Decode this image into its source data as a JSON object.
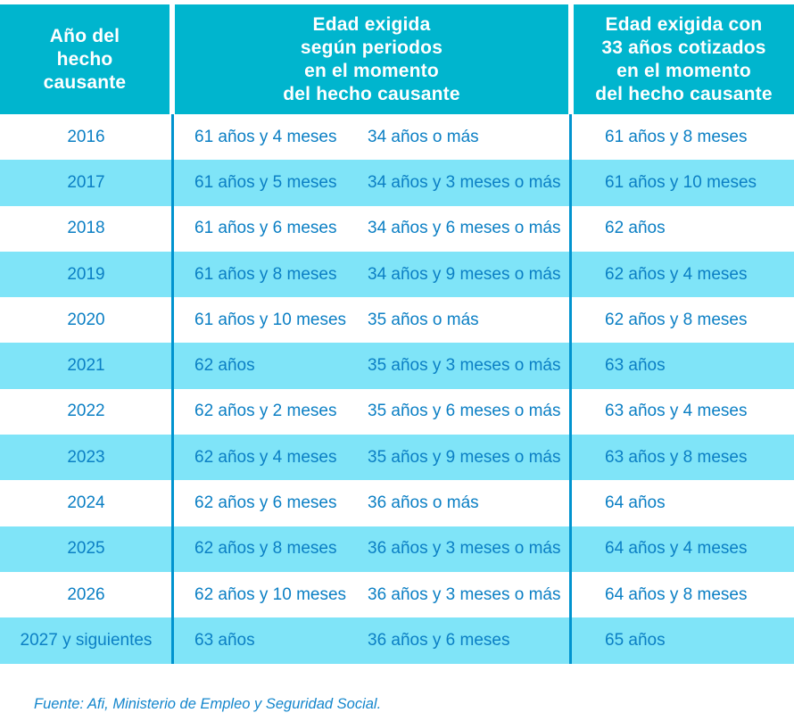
{
  "header": {
    "col1": "Año del\nhecho\ncausante",
    "col2": "Edad exigida\nsegún periodos\nen el momento\ndel hecho causante",
    "col3": "Edad exigida con\n33 años cotizados\nen el momento\ndel hecho causante"
  },
  "rows": [
    {
      "year": "2016",
      "required_age": "61 años y 4 meses",
      "contribution_period": "34 años o más",
      "age_with_33": "61 años y 8 meses"
    },
    {
      "year": "2017",
      "required_age": "61 años y 5 meses",
      "contribution_period": "34 años y 3 meses o más",
      "age_with_33": "61 años y 10 meses"
    },
    {
      "year": "2018",
      "required_age": "61 años y 6 meses",
      "contribution_period": "34 años y 6 meses o más",
      "age_with_33": "62 años"
    },
    {
      "year": "2019",
      "required_age": "61 años y 8 meses",
      "contribution_period": "34 años y 9 meses o más",
      "age_with_33": "62 años y 4 meses"
    },
    {
      "year": "2020",
      "required_age": "61 años y 10 meses",
      "contribution_period": "35 años o más",
      "age_with_33": "62 años y 8 meses"
    },
    {
      "year": "2021",
      "required_age": "62 años",
      "contribution_period": "35 años y 3 meses o más",
      "age_with_33": "63 años"
    },
    {
      "year": "2022",
      "required_age": "62 años y 2 meses",
      "contribution_period": "35 años y 6 meses o más",
      "age_with_33": "63 años y 4 meses"
    },
    {
      "year": "2023",
      "required_age": "62 años y 4 meses",
      "contribution_period": "35 años y 9 meses o más",
      "age_with_33": "63 años y 8 meses"
    },
    {
      "year": "2024",
      "required_age": "62 años y 6 meses",
      "contribution_period": "36 años o más",
      "age_with_33": "64 años"
    },
    {
      "year": "2025",
      "required_age": "62 años y 8 meses",
      "contribution_period": "36 años y 3 meses o más",
      "age_with_33": "64 años y 4 meses"
    },
    {
      "year": "2026",
      "required_age": "62 años y 10 meses",
      "contribution_period": "36 años y 3 meses o más",
      "age_with_33": "64 años y 8 meses"
    },
    {
      "year": "2027 y siguientes",
      "required_age": "63 años",
      "contribution_period": "36 años y 6 meses",
      "age_with_33": "65 años"
    }
  ],
  "footer": {
    "source": "Fuente: Afi, Ministerio de Empleo y Seguridad Social."
  },
  "colors": {
    "header_bg": "#00b5ce",
    "header_text": "#ffffff",
    "row_alt_bg": "#7fe4f8",
    "row_bg": "#ffffff",
    "body_text": "#0b7fc4",
    "divider": "#0093cf",
    "footer_text": "#1486cc"
  },
  "chart_data": {
    "type": "table",
    "title": "",
    "columns": [
      "Año del hecho causante",
      "Edad exigida según periodos en el momento del hecho causante (edad)",
      "Edad exigida según periodos en el momento del hecho causante (periodo cotizado)",
      "Edad exigida con 33 años cotizados en el momento del hecho causante"
    ],
    "rows": [
      [
        "2016",
        "61 años y 4 meses",
        "34 años o más",
        "61 años y 8 meses"
      ],
      [
        "2017",
        "61 años y 5 meses",
        "34 años y 3 meses o más",
        "61 años y 10 meses"
      ],
      [
        "2018",
        "61 años y 6 meses",
        "34 años y 6 meses o más",
        "62 años"
      ],
      [
        "2019",
        "61 años y 8 meses",
        "34 años y 9 meses o más",
        "62 años y 4 meses"
      ],
      [
        "2020",
        "61 años y 10 meses",
        "35 años o más",
        "62 años y 8 meses"
      ],
      [
        "2021",
        "62 años",
        "35 años y 3 meses o más",
        "63 años"
      ],
      [
        "2022",
        "62 años y 2 meses",
        "35 años y 6 meses o más",
        "63 años y 4 meses"
      ],
      [
        "2023",
        "62 años y 4 meses",
        "35 años y 9 meses o más",
        "63 años y 8 meses"
      ],
      [
        "2024",
        "62 años y 6 meses",
        "36 años o más",
        "64 años"
      ],
      [
        "2025",
        "62 años y 8 meses",
        "36 años y 3 meses o más",
        "64 años y 4 meses"
      ],
      [
        "2026",
        "62 años y 10 meses",
        "36 años y 3 meses o más",
        "64 años y 8 meses"
      ],
      [
        "2027 y siguientes",
        "63 años",
        "36 años y 6 meses",
        "65 años"
      ]
    ],
    "source": "Fuente: Afi, Ministerio de Empleo y Seguridad Social.",
    "layout": {
      "alternating_row_shading": true,
      "grid": "column dividers only"
    }
  }
}
